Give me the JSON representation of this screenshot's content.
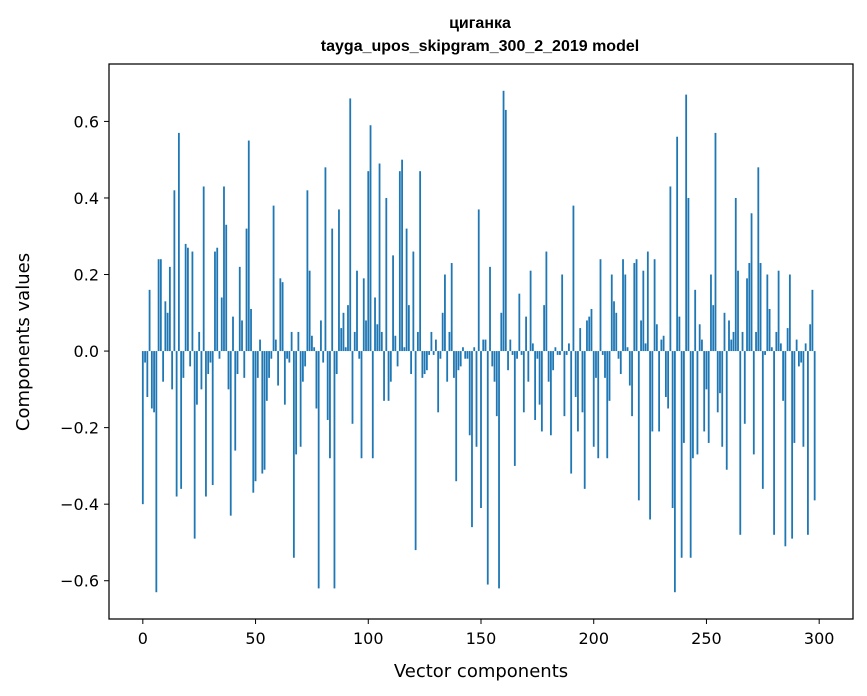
{
  "chart_data": {
    "type": "bar",
    "title": "циганка",
    "subtitle": "tayga_upos_skipgram_300_2_2019 model",
    "xlabel": "Vector components",
    "ylabel": "Components values",
    "xlim": [
      -15,
      315
    ],
    "ylim": [
      -0.7,
      0.75
    ],
    "xticks": [
      0,
      50,
      100,
      150,
      200,
      250,
      300
    ],
    "xtick_labels": [
      "0",
      "50",
      "100",
      "150",
      "200",
      "250",
      "300"
    ],
    "yticks": [
      -0.6,
      -0.4,
      -0.2,
      0.0,
      0.2,
      0.4,
      0.6
    ],
    "ytick_labels": [
      "−0.6",
      "−0.4",
      "−0.2",
      "0.0",
      "0.2",
      "0.4",
      "0.6"
    ],
    "bar_color": "#1f77b4",
    "grid": false,
    "x": "indices 0–299",
    "values": [
      -0.4,
      -0.03,
      -0.12,
      0.16,
      -0.15,
      -0.16,
      -0.63,
      0.24,
      0.24,
      -0.08,
      0.13,
      0.1,
      0.22,
      -0.1,
      0.42,
      -0.38,
      0.57,
      -0.36,
      -0.07,
      0.28,
      0.27,
      -0.04,
      0.26,
      -0.49,
      -0.14,
      0.05,
      -0.1,
      0.43,
      -0.38,
      -0.06,
      -0.03,
      -0.35,
      0.26,
      0.27,
      -0.02,
      0.14,
      0.43,
      0.33,
      -0.1,
      -0.43,
      0.09,
      -0.26,
      -0.06,
      0.22,
      0.08,
      -0.07,
      0.32,
      0.55,
      0.11,
      -0.37,
      -0.34,
      -0.07,
      0.03,
      -0.32,
      -0.31,
      -0.13,
      -0.07,
      -0.02,
      0.38,
      0.03,
      -0.09,
      0.19,
      0.18,
      -0.14,
      -0.02,
      -0.03,
      0.05,
      -0.54,
      -0.27,
      0.05,
      -0.25,
      -0.08,
      -0.04,
      0.42,
      0.21,
      0.04,
      0.01,
      -0.15,
      -0.62,
      0.08,
      -0.03,
      0.48,
      -0.18,
      -0.28,
      0.32,
      -0.62,
      -0.06,
      0.37,
      0.06,
      0.1,
      0.01,
      0.12,
      0.66,
      -0.19,
      0.05,
      0.21,
      -0.02,
      -0.28,
      0.19,
      0.08,
      0.47,
      0.59,
      -0.28,
      0.14,
      0.07,
      0.49,
      0.05,
      -0.13,
      0.4,
      -0.13,
      -0.08,
      0.25,
      0.04,
      -0.04,
      0.47,
      0.5,
      0.01,
      0.32,
      0.12,
      -0.06,
      0.26,
      -0.52,
      0.05,
      0.47,
      -0.07,
      -0.06,
      -0.05,
      -0.01,
      0.05,
      -0.01,
      0.03,
      -0.16,
      -0.02,
      0.1,
      0.2,
      -0.08,
      0.05,
      0.23,
      -0.07,
      -0.34,
      -0.05,
      -0.04,
      0.01,
      -0.02,
      -0.02,
      -0.22,
      -0.46,
      0.01,
      -0.25,
      0.37,
      -0.41,
      0.03,
      0.03,
      -0.61,
      0.22,
      -0.04,
      -0.08,
      -0.17,
      -0.62,
      0.1,
      0.68,
      0.63,
      -0.05,
      0.03,
      -0.01,
      -0.3,
      -0.02,
      0.15,
      -0.01,
      -0.16,
      0.09,
      -0.08,
      0.21,
      0.02,
      -0.18,
      -0.02,
      -0.14,
      -0.21,
      0.12,
      0.26,
      -0.08,
      -0.22,
      -0.05,
      0.01,
      -0.01,
      -0.01,
      0.2,
      -0.17,
      -0.01,
      0.02,
      -0.32,
      0.38,
      -0.12,
      -0.21,
      0.06,
      -0.16,
      -0.36,
      0.08,
      0.09,
      0.11,
      -0.25,
      -0.07,
      -0.28,
      0.24,
      -0.01,
      -0.07,
      -0.28,
      -0.13,
      0.2,
      0.13,
      0.1,
      -0.02,
      -0.06,
      0.24,
      0.2,
      0.01,
      -0.09,
      -0.17,
      0.23,
      0.24,
      -0.39,
      0.08,
      0.21,
      0.02,
      0.26,
      -0.44,
      -0.21,
      0.24,
      0.07,
      -0.21,
      0.03,
      0.04,
      -0.12,
      -0.15,
      0.43,
      -0.41,
      -0.63,
      0.56,
      0.09,
      -0.54,
      -0.24,
      0.67,
      0.4,
      -0.54,
      -0.28,
      0.16,
      -0.27,
      0.07,
      0.03,
      -0.21,
      -0.1,
      -0.24,
      0.2,
      0.12,
      0.57,
      -0.16,
      -0.11,
      -0.25,
      0.1,
      -0.31,
      0.08,
      0.03,
      0.05,
      0.4,
      0.21,
      -0.48,
      0.05,
      -0.19,
      0.19,
      0.23,
      0.36,
      -0.27,
      0.05,
      0.48,
      0.23,
      -0.36,
      -0.01,
      0.2,
      0.11,
      0.01,
      -0.48,
      0.05,
      0.21,
      0.02,
      -0.13,
      -0.51,
      0.06,
      0.2,
      -0.49,
      -0.24,
      0.03,
      -0.04,
      -0.03,
      -0.25,
      0.02,
      -0.48,
      0.07,
      0.16,
      -0.39
    ]
  }
}
